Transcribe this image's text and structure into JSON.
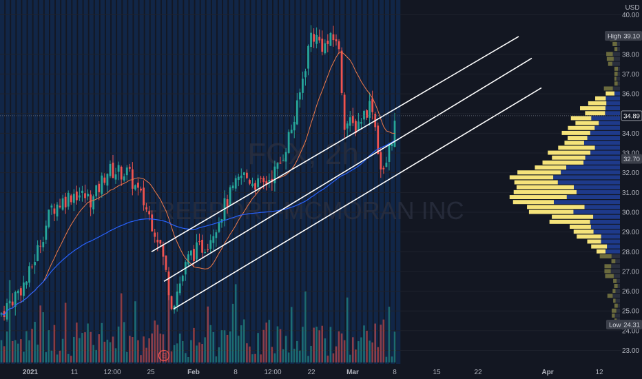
{
  "chart_data": {
    "type": "candlestick",
    "symbol_watermark": "FCX, 2h",
    "company_watermark": "FREEPORT-MCMORAN INC",
    "currency": "USD",
    "price_range": [
      22.6,
      40.4
    ],
    "y_ticks": [
      "40.00",
      "38.00",
      "37.00",
      "36.00",
      "35.00",
      "34.00",
      "33.00",
      "32.00",
      "31.00",
      "30.00",
      "29.00",
      "28.00",
      "27.00",
      "26.00",
      "25.00",
      "24.00",
      "23.00"
    ],
    "y_tick_values": [
      40,
      38,
      37,
      36,
      35,
      34,
      33,
      32,
      31,
      30,
      29,
      28,
      27,
      26,
      25,
      24,
      23
    ],
    "x_ticks": [
      "2021",
      "11",
      "12:00",
      "25",
      "Feb",
      "8",
      "12:00",
      "22",
      "Mar",
      "8",
      "15",
      "22",
      "Apr",
      "12"
    ],
    "high_label": "High",
    "high_value": "39.10",
    "low_label": "Low",
    "low_value": "24.31",
    "last_price": "34.89",
    "last_price_value": 34.89,
    "poc_price": "32.70",
    "poc_price_value": 32.7,
    "earnings_marker": "E",
    "key_points": [
      {
        "x": "2021 start",
        "close": 24.8
      },
      {
        "x": "11 Jan",
        "close": 31.0
      },
      {
        "x": "18 Jan",
        "close": 32.1
      },
      {
        "x": "27 Jan",
        "close": 25.3
      },
      {
        "x": "8 Feb",
        "close": 31.9
      },
      {
        "x": "22 Feb",
        "close": 39.1
      },
      {
        "x": "1 Mar",
        "close": 34.3
      },
      {
        "x": "5 Mar",
        "close": 31.6
      },
      {
        "x": "8 Mar",
        "close": 34.9
      }
    ],
    "channel_lines": [
      {
        "start_price": 28.0,
        "end_price": 38.9
      },
      {
        "start_price": 26.5,
        "end_price": 37.8
      },
      {
        "start_price": 25.1,
        "end_price": 36.3
      }
    ],
    "colors": {
      "background": "#131722",
      "up": "#26a69a",
      "down": "#ef5350",
      "ma_fast": "#f07a4a",
      "ma_slow": "#2962ff",
      "volume_profile_up": "#f5e37a",
      "volume_profile_down": "#1e3a8a",
      "volume_profile_far": "#6b6b3e"
    }
  }
}
